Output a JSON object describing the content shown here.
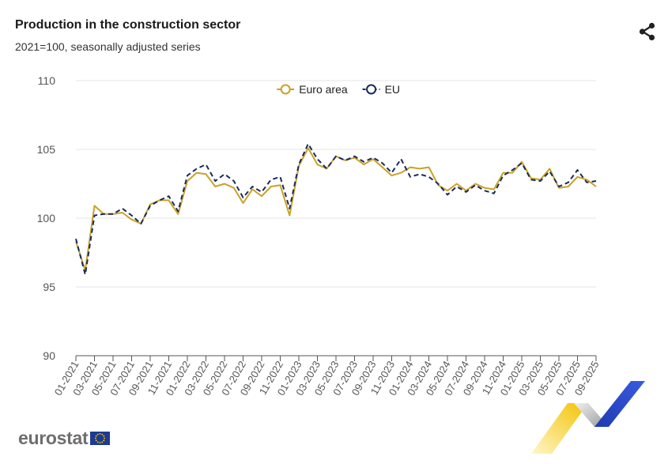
{
  "header": {
    "title": "Production in the construction sector",
    "subtitle": "2021=100, seasonally adjusted series"
  },
  "branding": {
    "logo_text": "eurostat"
  },
  "icons": {
    "share": "share-icon",
    "flag": "eu-flag-icon"
  },
  "chart_data": {
    "type": "line",
    "title": "Production in the construction sector",
    "subtitle": "2021=100, seasonally adjusted series",
    "xlabel": "",
    "ylabel": "",
    "ylim": [
      90,
      110
    ],
    "yticks": [
      90,
      95,
      100,
      105,
      110
    ],
    "grid": true,
    "legend_position": "top-center",
    "categories": [
      "01-2021",
      "02-2021",
      "03-2021",
      "04-2021",
      "05-2021",
      "06-2021",
      "07-2021",
      "08-2021",
      "09-2021",
      "10-2021",
      "11-2021",
      "12-2021",
      "01-2022",
      "02-2022",
      "03-2022",
      "04-2022",
      "05-2022",
      "06-2022",
      "07-2022",
      "08-2022",
      "09-2022",
      "10-2022",
      "11-2022",
      "12-2022",
      "01-2023",
      "02-2023",
      "03-2023",
      "04-2023",
      "05-2023",
      "06-2023",
      "07-2023",
      "08-2023",
      "09-2023",
      "10-2023",
      "11-2023",
      "12-2023",
      "01-2024",
      "02-2024",
      "03-2024",
      "04-2024",
      "05-2024",
      "06-2024",
      "07-2024",
      "08-2024",
      "09-2024",
      "10-2024",
      "11-2024",
      "12-2024",
      "01-2025",
      "02-2025",
      "03-2025",
      "04-2025",
      "05-2025",
      "06-2025",
      "07-2025",
      "08-2025",
      "09-2025"
    ],
    "tick_labels": [
      "01-2021",
      "03-2021",
      "05-2021",
      "07-2021",
      "09-2021",
      "11-2021",
      "01-2022",
      "03-2022",
      "05-2022",
      "07-2022",
      "09-2022",
      "11-2022",
      "01-2023",
      "03-2023",
      "05-2023",
      "07-2023",
      "09-2023",
      "11-2023",
      "01-2024",
      "03-2024",
      "05-2024",
      "07-2024",
      "09-2024",
      "11-2024",
      "01-2025",
      "03-2025",
      "05-2025",
      "07-2025",
      "09-2025"
    ],
    "series": [
      {
        "name": "Euro area",
        "color": "#c9a227",
        "style": "solid",
        "values": [
          98.3,
          96.2,
          100.9,
          100.3,
          100.3,
          100.4,
          99.9,
          99.6,
          101.0,
          101.3,
          101.3,
          100.3,
          102.7,
          103.3,
          103.2,
          102.3,
          102.5,
          102.2,
          101.1,
          102.1,
          101.6,
          102.3,
          102.4,
          100.2,
          103.8,
          105.1,
          103.9,
          103.6,
          104.5,
          104.2,
          104.4,
          103.9,
          104.3,
          103.7,
          103.1,
          103.3,
          103.7,
          103.6,
          103.7,
          102.4,
          102.0,
          102.5,
          102.0,
          102.5,
          102.2,
          102.1,
          103.3,
          103.3,
          104.1,
          102.9,
          102.8,
          103.6,
          102.2,
          102.3,
          103.0,
          102.8,
          102.3
        ]
      },
      {
        "name": "EU",
        "color": "#1a2a5e",
        "style": "dashed",
        "values": [
          98.5,
          95.9,
          100.2,
          100.3,
          100.3,
          100.7,
          100.2,
          99.6,
          100.9,
          101.3,
          101.6,
          100.5,
          103.1,
          103.6,
          103.9,
          102.7,
          103.2,
          102.7,
          101.5,
          102.3,
          101.9,
          102.8,
          103.0,
          100.7,
          103.9,
          105.4,
          104.3,
          103.6,
          104.5,
          104.2,
          104.5,
          104.1,
          104.4,
          104.0,
          103.3,
          104.3,
          103.0,
          103.2,
          103.0,
          102.5,
          101.7,
          102.3,
          101.9,
          102.4,
          102.0,
          101.8,
          103.1,
          103.5,
          104.0,
          102.8,
          102.7,
          103.4,
          102.3,
          102.6,
          103.5,
          102.6,
          102.7
        ]
      }
    ]
  }
}
